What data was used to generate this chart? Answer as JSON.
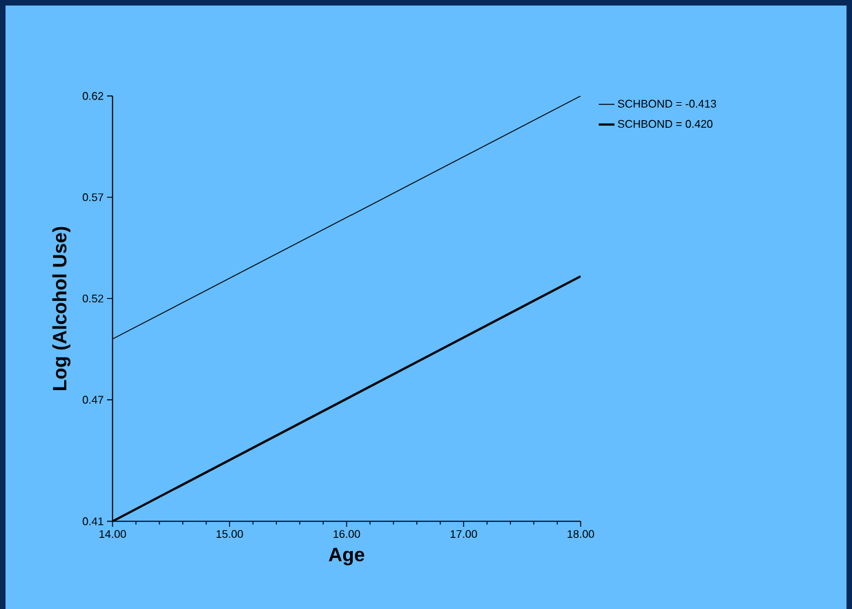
{
  "chart_data": {
    "type": "line",
    "xlabel": "Age",
    "ylabel": "Log (Alcohol Use)",
    "xlim": [
      14,
      18
    ],
    "ylim": [
      0.41,
      0.62
    ],
    "xticks": [
      {
        "value": 14,
        "label": "14.00"
      },
      {
        "value": 15,
        "label": "15.00"
      },
      {
        "value": 16,
        "label": "16.00"
      },
      {
        "value": 17,
        "label": "17.00"
      },
      {
        "value": 18,
        "label": "18.00"
      }
    ],
    "yticks": [
      {
        "value": 0.41,
        "label": "0.41"
      },
      {
        "value": 0.47,
        "label": "0.47"
      },
      {
        "value": 0.52,
        "label": "0.52"
      },
      {
        "value": 0.57,
        "label": "0.57"
      },
      {
        "value": 0.62,
        "label": "0.62"
      }
    ],
    "x": [
      14,
      18
    ],
    "series": [
      {
        "name": "SCHBOND = -0.413",
        "color": "#000000",
        "values": [
          0.5,
          0.62
        ]
      },
      {
        "name": "SCHBOND = 0.420",
        "color": "#000000",
        "values": [
          0.41,
          0.531
        ]
      }
    ],
    "legend": "top right",
    "grid": false,
    "marker": "none",
    "line_style": "solid"
  }
}
